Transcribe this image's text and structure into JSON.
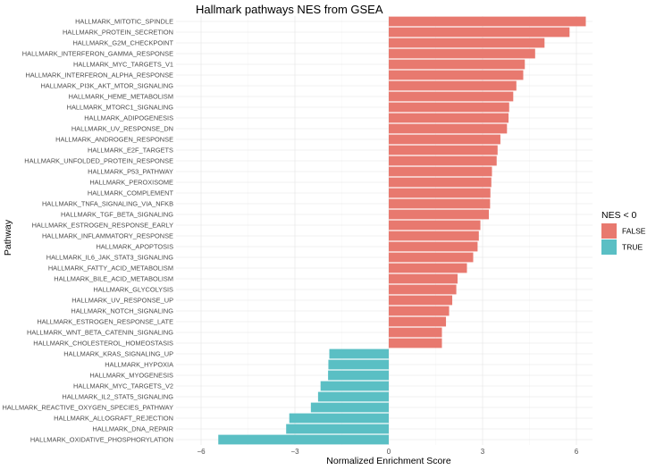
{
  "chart_data": {
    "type": "bar",
    "orientation": "horizontal",
    "title": "Hallmark pathways NES from GSEA",
    "xlabel": "Normalized Enrichment Score",
    "ylabel": "Pathway",
    "xlim": [
      -6,
      6.5
    ],
    "xticks": [
      -6,
      -3,
      0,
      3,
      6
    ],
    "grid": true,
    "legend": {
      "title": "NES < 0",
      "position": "right",
      "entries": [
        {
          "label": "FALSE",
          "color": "#e8796f"
        },
        {
          "label": "TRUE",
          "color": "#5abfc4"
        }
      ]
    },
    "categories": [
      "HALLMARK_MITOTIC_SPINDLE",
      "HALLMARK_PROTEIN_SECRETION",
      "HALLMARK_G2M_CHECKPOINT",
      "HALLMARK_INTERFERON_GAMMA_RESPONSE",
      "HALLMARK_MYC_TARGETS_V1",
      "HALLMARK_INTERFERON_ALPHA_RESPONSE",
      "HALLMARK_PI3K_AKT_MTOR_SIGNALING",
      "HALLMARK_HEME_METABOLISM",
      "HALLMARK_MTORC1_SIGNALING",
      "HALLMARK_ADIPOGENESIS",
      "HALLMARK_UV_RESPONSE_DN",
      "HALLMARK_ANDROGEN_RESPONSE",
      "HALLMARK_E2F_TARGETS",
      "HALLMARK_UNFOLDED_PROTEIN_RESPONSE",
      "HALLMARK_P53_PATHWAY",
      "HALLMARK_PEROXISOME",
      "HALLMARK_COMPLEMENT",
      "HALLMARK_TNFA_SIGNALING_VIA_NFKB",
      "HALLMARK_TGF_BETA_SIGNALING",
      "HALLMARK_ESTROGEN_RESPONSE_EARLY",
      "HALLMARK_INFLAMMATORY_RESPONSE",
      "HALLMARK_APOPTOSIS",
      "HALLMARK_IL6_JAK_STAT3_SIGNALING",
      "HALLMARK_FATTY_ACID_METABOLISM",
      "HALLMARK_BILE_ACID_METABOLISM",
      "HALLMARK_GLYCOLYSIS",
      "HALLMARK_UV_RESPONSE_UP",
      "HALLMARK_NOTCH_SIGNALING",
      "HALLMARK_ESTROGEN_RESPONSE_LATE",
      "HALLMARK_WNT_BETA_CATENIN_SIGNALING",
      "HALLMARK_CHOLESTEROL_HOMEOSTASIS",
      "HALLMARK_KRAS_SIGNALING_UP",
      "HALLMARK_HYPOXIA",
      "HALLMARK_MYOGENESIS",
      "HALLMARK_MYC_TARGETS_V2",
      "HALLMARK_IL2_STAT5_SIGNALING",
      "HALLMARK_REACTIVE_OXYGEN_SPECIES_PATHWAY",
      "HALLMARK_ALLOGRAFT_REJECTION",
      "HALLMARK_DNA_REPAIR",
      "HALLMARK_OXIDATIVE_PHOSPHORYLATION"
    ],
    "values": [
      6.3,
      5.78,
      4.98,
      4.68,
      4.35,
      4.3,
      4.08,
      3.98,
      3.85,
      3.83,
      3.78,
      3.57,
      3.48,
      3.45,
      3.3,
      3.28,
      3.25,
      3.24,
      3.2,
      2.93,
      2.88,
      2.84,
      2.7,
      2.5,
      2.2,
      2.16,
      2.03,
      1.93,
      1.83,
      1.7,
      1.7,
      -1.9,
      -1.93,
      -1.94,
      -2.18,
      -2.26,
      -2.49,
      -3.18,
      -3.28,
      -5.45
    ],
    "nes_lt_0": [
      "FALSE",
      "FALSE",
      "FALSE",
      "FALSE",
      "FALSE",
      "FALSE",
      "FALSE",
      "FALSE",
      "FALSE",
      "FALSE",
      "FALSE",
      "FALSE",
      "FALSE",
      "FALSE",
      "FALSE",
      "FALSE",
      "FALSE",
      "FALSE",
      "FALSE",
      "FALSE",
      "FALSE",
      "FALSE",
      "FALSE",
      "FALSE",
      "FALSE",
      "FALSE",
      "FALSE",
      "FALSE",
      "FALSE",
      "FALSE",
      "FALSE",
      "TRUE",
      "TRUE",
      "TRUE",
      "TRUE",
      "TRUE",
      "TRUE",
      "TRUE",
      "TRUE",
      "TRUE"
    ]
  }
}
